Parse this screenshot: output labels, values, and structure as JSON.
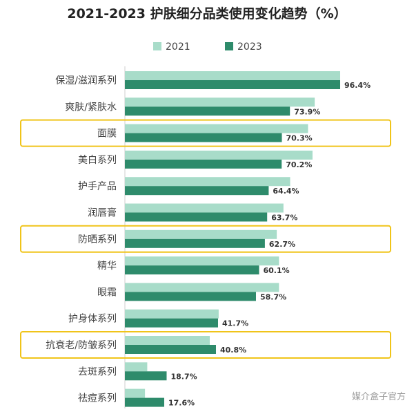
{
  "chart_data": {
    "type": "bar",
    "orientation": "horizontal",
    "title": "2021-2023 护肤细分品类使用变化趋势（%）",
    "categories": [
      "保湿/滋润系列",
      "爽肤/紧肤水",
      "面膜",
      "美白系列",
      "护手产品",
      "润唇膏",
      "防晒系列",
      "精华",
      "眼霜",
      "护身体系列",
      "抗衰老/防皱系列",
      "去斑系列",
      "祛痘系列"
    ],
    "series": [
      {
        "name": "2021",
        "color": "#a8dcc9",
        "values": [
          96.4,
          85.0,
          82.0,
          84.0,
          74.0,
          71.0,
          68.0,
          69.0,
          69.0,
          42.0,
          38.0,
          10.0,
          9.0
        ]
      },
      {
        "name": "2023",
        "color": "#2e8b6b",
        "values": [
          96.4,
          73.9,
          70.3,
          70.2,
          64.4,
          63.7,
          62.7,
          60.1,
          58.7,
          41.7,
          40.8,
          18.7,
          17.6
        ]
      }
    ],
    "data_labels": [
      "96.4%",
      "73.9%",
      "70.3%",
      "70.2%",
      "64.4%",
      "63.7%",
      "62.7%",
      "60.1%",
      "58.7%",
      "41.7%",
      "40.8%",
      "18.7%",
      "17.6%"
    ],
    "highlighted_categories": [
      "面膜",
      "防晒系列",
      "抗衰老/防皱系列"
    ],
    "highlight_color": "#f0c419",
    "legend_position": "top",
    "xlim": [
      0,
      100
    ],
    "grid": false
  },
  "watermark": "媒介盒子官方"
}
